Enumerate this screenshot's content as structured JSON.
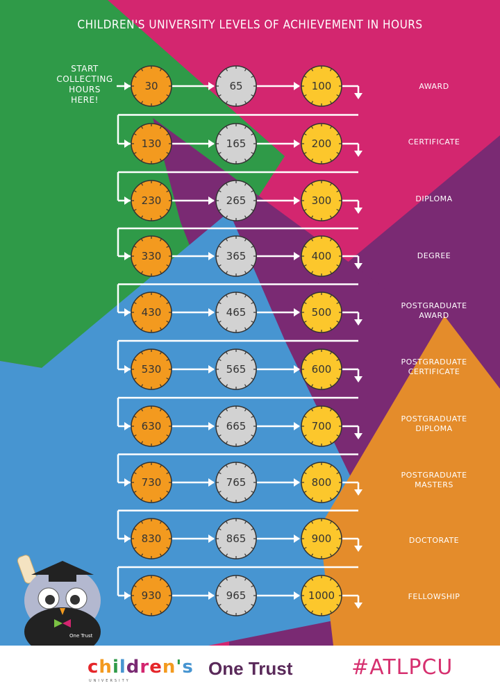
{
  "title": "CHILDREN'S UNIVERSITY LEVELS OF ACHIEVEMENT IN HOURS",
  "start_text": "START COLLECTING HOURS HERE!",
  "rows": [
    {
      "hours": [
        "30",
        "65",
        "100"
      ],
      "level": "AWARD"
    },
    {
      "hours": [
        "130",
        "165",
        "200"
      ],
      "level": "CERTIFICATE"
    },
    {
      "hours": [
        "230",
        "265",
        "300"
      ],
      "level": "DIPLOMA"
    },
    {
      "hours": [
        "330",
        "365",
        "400"
      ],
      "level": "DEGREE"
    },
    {
      "hours": [
        "430",
        "465",
        "500"
      ],
      "level": "POSTGRADUATE AWARD"
    },
    {
      "hours": [
        "530",
        "565",
        "600"
      ],
      "level": "POSTGRADUATE CERTIFICATE"
    },
    {
      "hours": [
        "630",
        "665",
        "700"
      ],
      "level": "POSTGRADUATE DIPLOMA"
    },
    {
      "hours": [
        "730",
        "765",
        "800"
      ],
      "level": "POSTGRADUATE MASTERS"
    },
    {
      "hours": [
        "830",
        "865",
        "900"
      ],
      "level": "DOCTORATE"
    },
    {
      "hours": [
        "930",
        "965",
        "1000"
      ],
      "level": "FELLOWSHIP"
    }
  ],
  "mascot_badge": "One Trust",
  "footer": {
    "childrens_logo": "children's",
    "childrens_sub": "UNIVERSITY",
    "onetrust_logo": "One Trust",
    "hashtag": "#ATLPCU"
  },
  "colors": {
    "magenta": "#d3266f",
    "green": "#2f9a48",
    "purple": "#7a2a73",
    "blue": "#4795d1",
    "orange": "#e48c2b",
    "clock_orange": "#f39a1f",
    "clock_grey": "#d2d2d2",
    "clock_yellow": "#fcc72c"
  }
}
